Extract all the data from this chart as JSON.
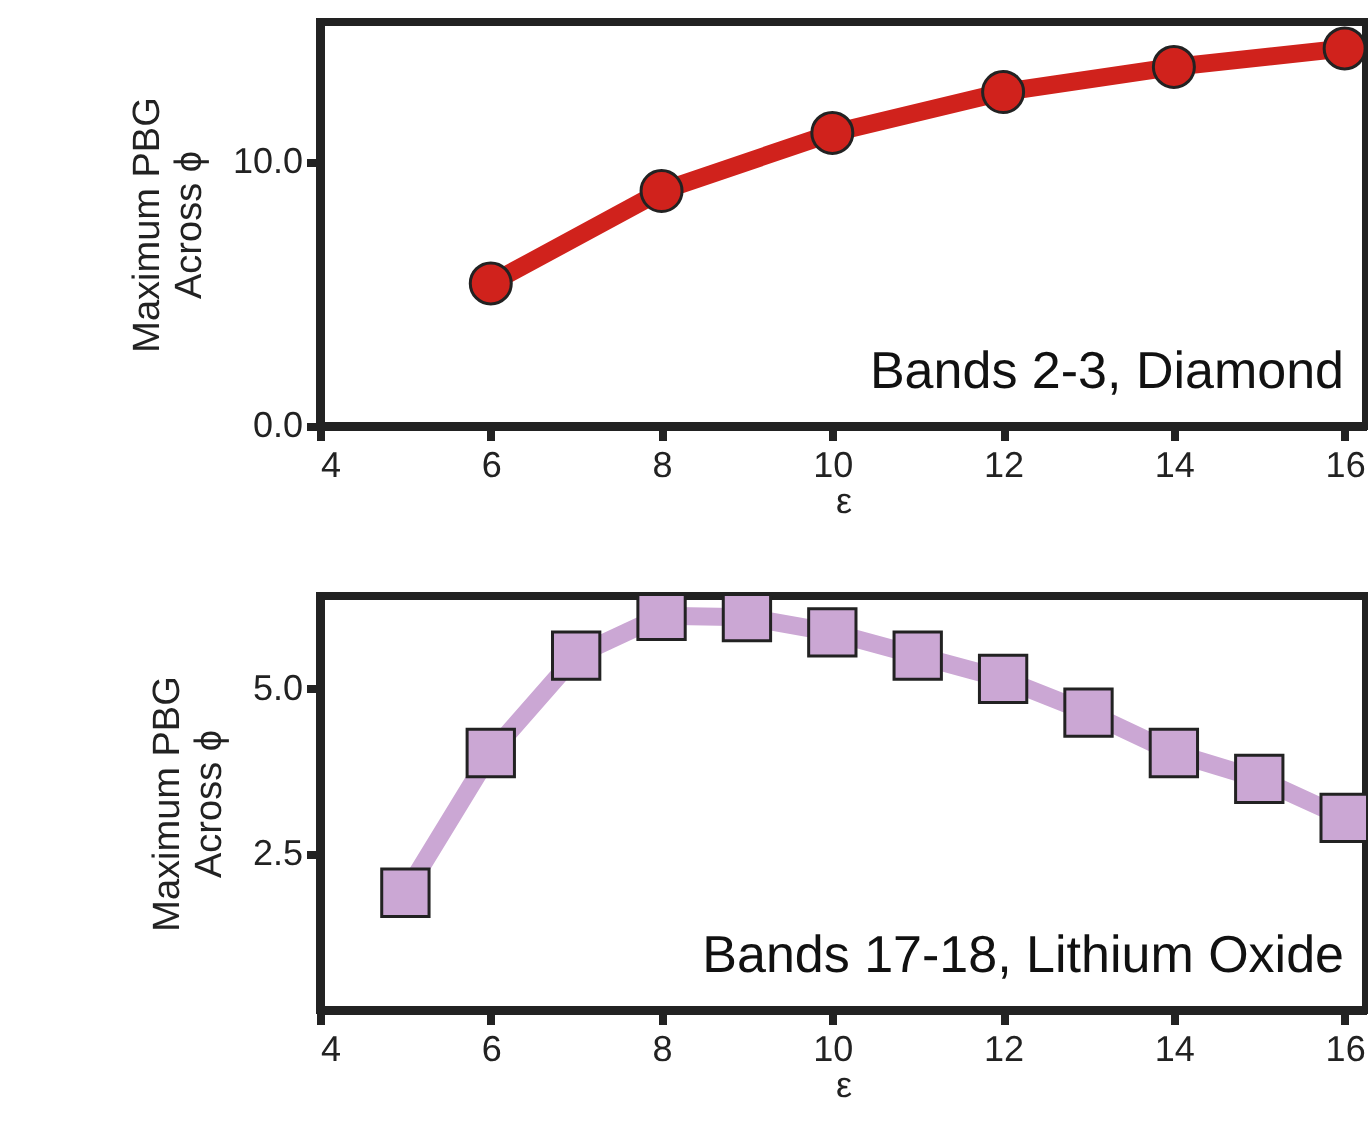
{
  "chart_data": [
    {
      "type": "line",
      "xlabel": "ε",
      "ylabel": "Maximum PBG\nAcross ϕ",
      "annotations": [
        "Bands 2-3, Diamond"
      ],
      "x": [
        6,
        8,
        10,
        12,
        14,
        16
      ],
      "series": [
        {
          "color": "#d0221c",
          "values": [
            5.4,
            8.9,
            11.1,
            12.65,
            13.6,
            14.3
          ]
        }
      ],
      "xlim": [
        4,
        16.25
      ],
      "xticks": [
        4,
        6,
        8,
        10,
        12,
        14,
        16
      ],
      "ylim": [
        0,
        15.3
      ],
      "yticks": [
        {
          "value": 0,
          "label": "0.0"
        },
        {
          "value": 10,
          "label": "10.0"
        }
      ],
      "marker": "circle",
      "grid": false
    },
    {
      "type": "line",
      "xlabel": "ε",
      "ylabel": "Maximum PBG\nAcross ϕ",
      "annotations": [
        "Bands 17-18, Lithium Oxide"
      ],
      "x": [
        5,
        6,
        7,
        8,
        9,
        10,
        11,
        12,
        13,
        14,
        15,
        16
      ],
      "series": [
        {
          "color": "#cba7d4",
          "values": [
            1.92,
            4.03,
            5.5,
            6.1,
            6.08,
            5.85,
            5.5,
            5.15,
            4.64,
            4.03,
            3.64,
            3.05
          ]
        }
      ],
      "xlim": [
        4,
        16.25
      ],
      "xticks": [
        4,
        6,
        8,
        10,
        12,
        14,
        16
      ],
      "ylim": [
        0.15,
        6.4
      ],
      "yticks": [
        {
          "value": 2.5,
          "label": "2.5"
        },
        {
          "value": 5,
          "label": "5.0"
        }
      ],
      "marker": "square",
      "grid": false
    }
  ]
}
